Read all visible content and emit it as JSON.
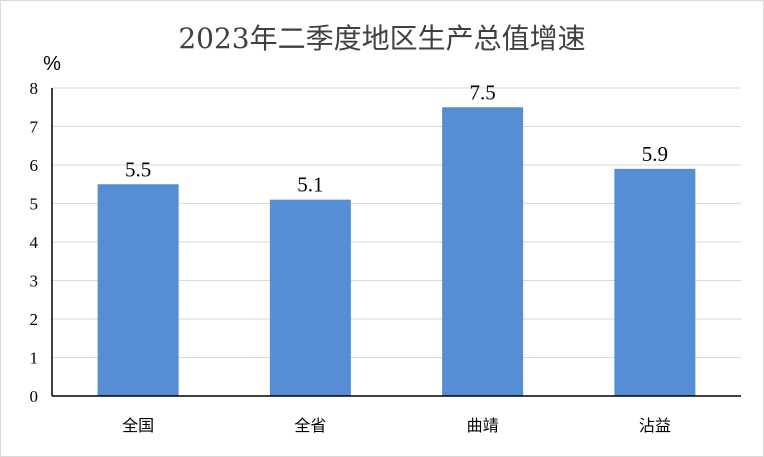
{
  "chart_data": {
    "type": "bar",
    "title": "2023年二季度地区生产总值增速",
    "unit_label": "%",
    "categories": [
      "全国",
      "全省",
      "曲靖",
      "沾益"
    ],
    "values": [
      5.5,
      5.1,
      7.5,
      5.9
    ],
    "data_labels": [
      "5.5",
      "5.1",
      "7.5",
      "5.9"
    ],
    "y_ticks": [
      "0",
      "1",
      "2",
      "3",
      "4",
      "5",
      "6",
      "7",
      "8"
    ],
    "ylim": [
      0,
      8
    ],
    "grid": true,
    "legend": "none",
    "colors": {
      "bar": "#558ed5",
      "grid": "#d9d9d9",
      "axis": "#000000"
    }
  }
}
